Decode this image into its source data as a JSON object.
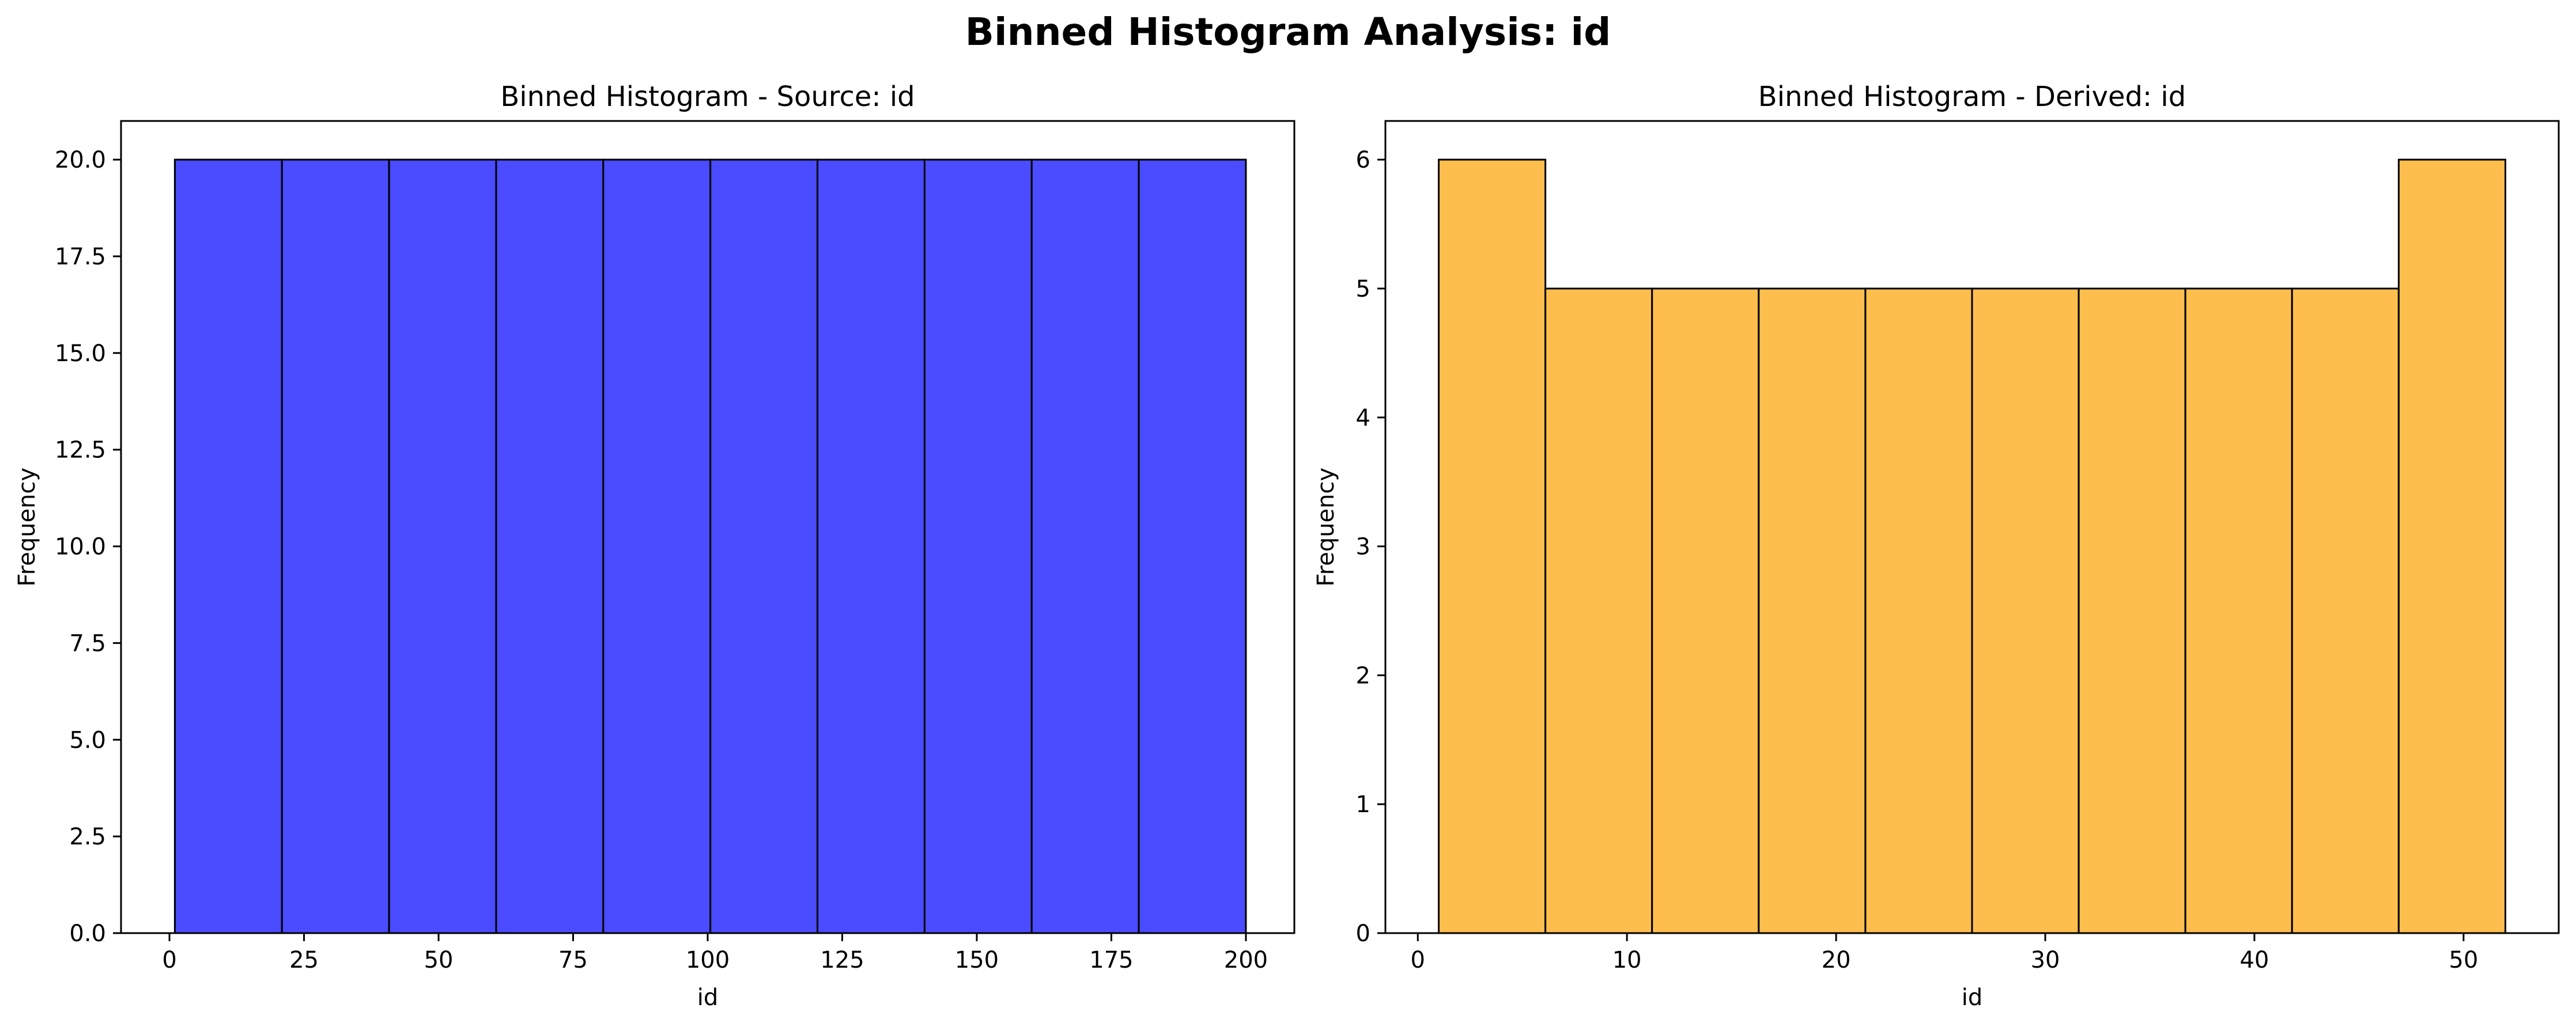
{
  "suptitle": "Binned Histogram Analysis: id",
  "chart_data": [
    {
      "type": "bar",
      "title": "Binned Histogram - Source: id",
      "xlabel": "id",
      "ylabel": "Frequency",
      "bar_color": "#4b4bff",
      "edge_color": "#000000",
      "xlim": [
        -9,
        209
      ],
      "ylim": [
        0,
        21
      ],
      "xticks": [
        0,
        25,
        50,
        75,
        100,
        125,
        150,
        175,
        200
      ],
      "yticks": [
        0.0,
        2.5,
        5.0,
        7.5,
        10.0,
        12.5,
        15.0,
        17.5,
        20.0
      ],
      "ytick_decimals": 1,
      "bins": [
        {
          "x0": 1,
          "x1": 20.9,
          "value": 20
        },
        {
          "x0": 20.9,
          "x1": 40.8,
          "value": 20
        },
        {
          "x0": 40.8,
          "x1": 60.7,
          "value": 20
        },
        {
          "x0": 60.7,
          "x1": 80.6,
          "value": 20
        },
        {
          "x0": 80.6,
          "x1": 100.5,
          "value": 20
        },
        {
          "x0": 100.5,
          "x1": 120.4,
          "value": 20
        },
        {
          "x0": 120.4,
          "x1": 140.3,
          "value": 20
        },
        {
          "x0": 140.3,
          "x1": 160.2,
          "value": 20
        },
        {
          "x0": 160.2,
          "x1": 180.1,
          "value": 20
        },
        {
          "x0": 180.1,
          "x1": 200,
          "value": 20
        }
      ]
    },
    {
      "type": "bar",
      "title": "Binned Histogram - Derived: id",
      "xlabel": "id",
      "ylabel": "Frequency",
      "bar_color": "#fdbe4e",
      "edge_color": "#000000",
      "xlim": [
        -1.55,
        54.55
      ],
      "ylim": [
        0,
        6.3
      ],
      "xticks": [
        0,
        10,
        20,
        30,
        40,
        50
      ],
      "yticks": [
        0,
        1,
        2,
        3,
        4,
        5,
        6
      ],
      "ytick_decimals": 0,
      "bins": [
        {
          "x0": 1,
          "x1": 6.1,
          "value": 6
        },
        {
          "x0": 6.1,
          "x1": 11.2,
          "value": 5
        },
        {
          "x0": 11.2,
          "x1": 16.3,
          "value": 5
        },
        {
          "x0": 16.3,
          "x1": 21.4,
          "value": 5
        },
        {
          "x0": 21.4,
          "x1": 26.5,
          "value": 5
        },
        {
          "x0": 26.5,
          "x1": 31.6,
          "value": 5
        },
        {
          "x0": 31.6,
          "x1": 36.7,
          "value": 5
        },
        {
          "x0": 36.7,
          "x1": 41.8,
          "value": 5
        },
        {
          "x0": 41.8,
          "x1": 46.9,
          "value": 5
        },
        {
          "x0": 46.9,
          "x1": 52,
          "value": 6
        }
      ]
    }
  ]
}
